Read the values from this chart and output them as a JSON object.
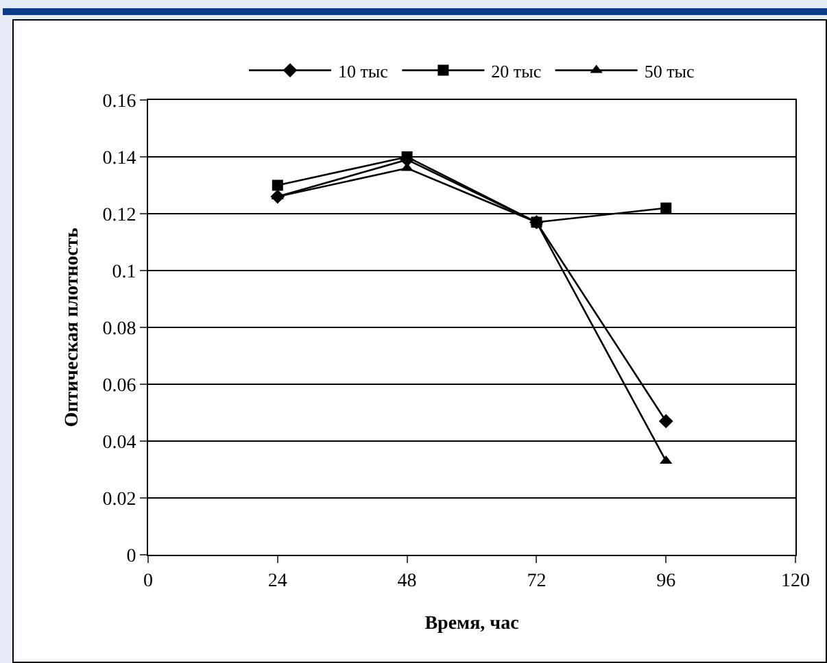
{
  "chart_data": {
    "type": "line",
    "xlabel": "Время, час",
    "ylabel": "Оптическая плотность",
    "x": [
      24,
      48,
      72,
      96
    ],
    "series": [
      {
        "name": "10 тыс",
        "color": "#000000",
        "marker": "diamond",
        "values": [
          0.126,
          0.139,
          0.117,
          0.047
        ]
      },
      {
        "name": "20 тыс",
        "color": "#000000",
        "marker": "square",
        "values": [
          0.13,
          0.14,
          0.117,
          0.122
        ]
      },
      {
        "name": "50 тыс",
        "color": "#000000",
        "marker": "triangle",
        "values": [
          0.126,
          0.136,
          0.117,
          0.033
        ]
      }
    ],
    "xlim": [
      0,
      120
    ],
    "xticks": [
      0,
      24,
      48,
      72,
      96,
      120
    ],
    "ylim": [
      0,
      0.16
    ],
    "yticks": [
      0,
      0.02,
      0.04,
      0.06,
      0.08,
      0.1,
      0.12,
      0.14,
      0.16
    ],
    "grid": "y",
    "legend": "top",
    "line_style": "solid"
  }
}
